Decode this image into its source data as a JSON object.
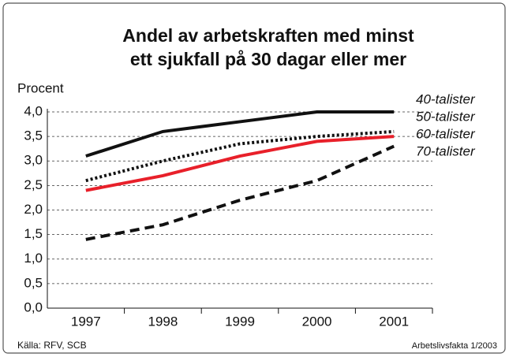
{
  "chart_data": {
    "type": "line",
    "title": [
      "Andel av arbetskraften med minst",
      "ett sjukfall på 30 dagar eller mer"
    ],
    "y_label": "Procent",
    "categories": [
      "1997",
      "1998",
      "1999",
      "2000",
      "2001"
    ],
    "series": [
      {
        "name": "40-talister",
        "color": "#111111",
        "style": "solid",
        "values": [
          3.1,
          3.6,
          3.8,
          4.0,
          4.0
        ]
      },
      {
        "name": "50-talister",
        "color": "#111111",
        "style": "dotted",
        "values": [
          2.6,
          3.0,
          3.35,
          3.5,
          3.6
        ]
      },
      {
        "name": "60-talister",
        "color": "#e8202a",
        "style": "solid",
        "values": [
          2.4,
          2.7,
          3.1,
          3.4,
          3.5
        ]
      },
      {
        "name": "70-talister",
        "color": "#111111",
        "style": "dashed",
        "values": [
          1.4,
          1.7,
          2.2,
          2.6,
          3.3
        ]
      }
    ],
    "ylim": [
      0,
      4
    ],
    "yticks": [
      {
        "value": 0,
        "label": "0,0"
      },
      {
        "value": 0.5,
        "label": "0,5"
      },
      {
        "value": 1,
        "label": "1,0"
      },
      {
        "value": 1.5,
        "label": "1,5"
      },
      {
        "value": 2,
        "label": "2,0"
      },
      {
        "value": 2.5,
        "label": "2,5"
      },
      {
        "value": 3,
        "label": "3,0"
      },
      {
        "value": 3.5,
        "label": "3,5"
      },
      {
        "value": 4,
        "label": "4,0"
      }
    ],
    "grid": true,
    "source": "Källa: RFV, SCB",
    "credit": "Arbetslivsfakta 1/2003"
  }
}
